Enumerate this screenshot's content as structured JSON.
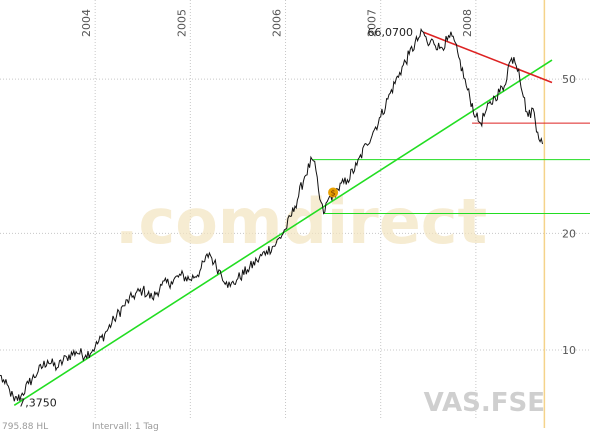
{
  "chart_data": {
    "type": "line",
    "ticker": "VAS.FSE",
    "watermark": ".comdirect",
    "footer_left": "795.88 HL",
    "footer_interval": "Intervall: 1 Tag",
    "y_scale": "log",
    "ylim": [
      6.6,
      80
    ],
    "xlim": [
      2003.0,
      2008.8
    ],
    "year_labels": [
      {
        "label": "2004",
        "x": 2004.0
      },
      {
        "label": "2005",
        "x": 2005.0
      },
      {
        "label": "2006",
        "x": 2006.0
      },
      {
        "label": "2007",
        "x": 2007.0
      },
      {
        "label": "2008",
        "x": 2008.0
      }
    ],
    "y_ticks": [
      {
        "label": "10",
        "value": 10
      },
      {
        "label": "20",
        "value": 20
      },
      {
        "label": "50",
        "value": 50
      }
    ],
    "max_label": "66,0700",
    "min_label": "7,3750",
    "price_anchors": [
      [
        2003.0,
        8.6
      ],
      [
        2003.05,
        8.2
      ],
      [
        2003.1,
        7.9
      ],
      [
        2003.15,
        7.375
      ],
      [
        2003.22,
        7.6
      ],
      [
        2003.3,
        8.2
      ],
      [
        2003.4,
        8.8
      ],
      [
        2003.5,
        9.4
      ],
      [
        2003.6,
        9.0
      ],
      [
        2003.7,
        9.6
      ],
      [
        2003.8,
        9.9
      ],
      [
        2003.9,
        9.7
      ],
      [
        2004.0,
        10.2
      ],
      [
        2004.1,
        11.0
      ],
      [
        2004.2,
        12.0
      ],
      [
        2004.3,
        13.0
      ],
      [
        2004.4,
        13.8
      ],
      [
        2004.5,
        14.3
      ],
      [
        2004.6,
        13.6
      ],
      [
        2004.7,
        14.7
      ],
      [
        2004.8,
        15.0
      ],
      [
        2004.9,
        15.6
      ],
      [
        2005.0,
        15.2
      ],
      [
        2005.1,
        16.0
      ],
      [
        2005.2,
        17.8
      ],
      [
        2005.25,
        16.8
      ],
      [
        2005.3,
        16.1
      ],
      [
        2005.38,
        15.0
      ],
      [
        2005.42,
        14.6
      ],
      [
        2005.5,
        15.3
      ],
      [
        2005.6,
        16.1
      ],
      [
        2005.7,
        17.0
      ],
      [
        2005.8,
        18.0
      ],
      [
        2005.9,
        18.8
      ],
      [
        2006.0,
        20.5
      ],
      [
        2006.1,
        23.5
      ],
      [
        2006.2,
        28.0
      ],
      [
        2006.28,
        31.0
      ],
      [
        2006.32,
        29.0
      ],
      [
        2006.36,
        24.5
      ],
      [
        2006.4,
        22.5
      ],
      [
        2006.45,
        24.5
      ],
      [
        2006.55,
        26.0
      ],
      [
        2006.65,
        27.5
      ],
      [
        2006.75,
        30.0
      ],
      [
        2006.85,
        34.0
      ],
      [
        2006.92,
        36.5
      ],
      [
        2007.0,
        40.0
      ],
      [
        2007.1,
        46.0
      ],
      [
        2007.2,
        52.0
      ],
      [
        2007.3,
        58.0
      ],
      [
        2007.4,
        64.0
      ],
      [
        2007.45,
        66.07
      ],
      [
        2007.5,
        61.0
      ],
      [
        2007.55,
        63.0
      ],
      [
        2007.62,
        60.0
      ],
      [
        2007.7,
        63.0
      ],
      [
        2007.75,
        64.5
      ],
      [
        2007.82,
        57.0
      ],
      [
        2007.9,
        48.0
      ],
      [
        2008.0,
        40.0
      ],
      [
        2008.05,
        38.5
      ],
      [
        2008.1,
        41.0
      ],
      [
        2008.2,
        45.0
      ],
      [
        2008.3,
        48.0
      ],
      [
        2008.35,
        55.0
      ],
      [
        2008.4,
        57.0
      ],
      [
        2008.45,
        53.0
      ],
      [
        2008.5,
        45.0
      ],
      [
        2008.55,
        40.0
      ],
      [
        2008.6,
        42.0
      ],
      [
        2008.65,
        36.5
      ],
      [
        2008.7,
        34.0
      ]
    ],
    "trend_lines": [
      {
        "name": "uptrend",
        "color": "#22dd22",
        "from": [
          2003.15,
          7.2
        ],
        "to": [
          2008.8,
          56.0
        ]
      },
      {
        "name": "downtrend",
        "color": "#dd2222",
        "from": [
          2007.45,
          66.07
        ],
        "to": [
          2008.8,
          49.0
        ]
      }
    ],
    "horizontal_lines": [
      {
        "name": "resistance-1",
        "color": "#22dd22",
        "value": 31.0,
        "x_from": 2006.28
      },
      {
        "name": "support-1",
        "color": "#22dd22",
        "value": 22.5,
        "x_from": 2006.4
      },
      {
        "name": "support-2",
        "color": "#dd2222",
        "value": 38.5,
        "x_from": 2007.96
      }
    ],
    "cursor_line": {
      "color": "#f5d38a",
      "x": 2008.72
    },
    "dividend_marker_color": "#e8a000",
    "dividend_marker_x": 2006.5,
    "dividend_marker_value": 25.5
  }
}
